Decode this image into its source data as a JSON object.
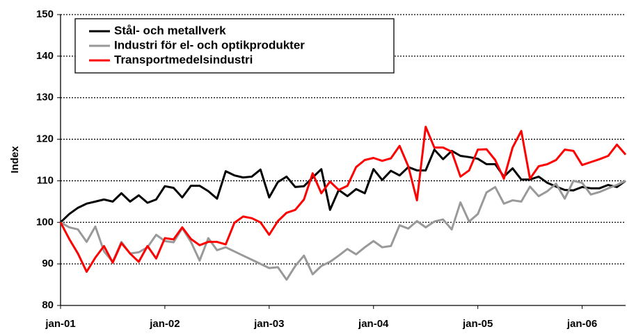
{
  "chart_data": {
    "type": "line",
    "y_label": "Index",
    "categories": [
      "jan-01",
      null,
      null,
      null,
      null,
      null,
      null,
      null,
      null,
      null,
      null,
      null,
      "jan-02",
      null,
      null,
      null,
      null,
      null,
      null,
      null,
      null,
      null,
      null,
      null,
      "jan-03",
      null,
      null,
      null,
      null,
      null,
      null,
      null,
      null,
      null,
      null,
      null,
      "jan-04",
      null,
      null,
      null,
      null,
      null,
      null,
      null,
      null,
      null,
      null,
      null,
      "jan-05",
      null,
      null,
      null,
      null,
      null,
      null,
      null,
      null,
      null,
      null,
      null,
      "jan-06",
      null,
      null,
      null,
      null,
      null
    ],
    "series": [
      {
        "name": "Stål- och metallverk",
        "color": "#000000",
        "values": [
          100,
          102,
          103.5,
          104.5,
          105,
          105.5,
          105,
          107,
          105,
          106.5,
          104.7,
          105.5,
          108.7,
          108.3,
          106,
          108.8,
          108.8,
          107.5,
          105.7,
          112.3,
          111.3,
          110.8,
          111,
          112.7,
          106,
          109.7,
          111,
          108.5,
          108.7,
          110.8,
          112.8,
          103,
          107.8,
          106.3,
          108,
          107,
          112.8,
          110.2,
          112.4,
          111.3,
          113.3,
          112.5,
          112.5,
          117.5,
          115.2,
          117.2,
          116,
          115.7,
          115.3,
          114,
          114,
          111,
          113,
          110.3,
          110.3,
          111,
          109.5,
          108.6,
          107.8,
          107.7,
          108.5,
          108.2,
          108.2,
          109,
          108.5,
          110
        ]
      },
      {
        "name": "Industri för el- och optikprodukter",
        "color": "#999999",
        "values": [
          100,
          98.8,
          98.3,
          95.3,
          99,
          93,
          90.5,
          95.3,
          92.5,
          92.8,
          94,
          97,
          95.5,
          95.2,
          98.6,
          95.3,
          90.8,
          96.2,
          93.3,
          94,
          93,
          92,
          91,
          90,
          89,
          89.2,
          86.2,
          89.5,
          92,
          87.5,
          89.5,
          90.5,
          92,
          93.6,
          92.3,
          94,
          95.5,
          94,
          94.3,
          99.3,
          98.5,
          100.3,
          98.8,
          100.2,
          100.7,
          98.3,
          104.8,
          100.2,
          102,
          107.2,
          108.5,
          104.5,
          105.3,
          105,
          108.6,
          106.3,
          107.5,
          109.3,
          105.7,
          110,
          109.5,
          106.7,
          107.3,
          108.2,
          109,
          110
        ]
      },
      {
        "name": "Transportmedelsindustri",
        "color": "#ff0000",
        "values": [
          100,
          96,
          92.5,
          88.1,
          91.5,
          94.3,
          90.3,
          95,
          92.5,
          90.5,
          94.3,
          91.3,
          96.2,
          95.9,
          98.8,
          96,
          94.5,
          95.3,
          95.3,
          94.7,
          99.9,
          101.4,
          101,
          100,
          97,
          100.3,
          102.3,
          103,
          105.5,
          111.8,
          107,
          109.8,
          107.8,
          108.8,
          113.3,
          115,
          115.5,
          114.8,
          115.4,
          118.4,
          113.5,
          105.3,
          123,
          118,
          118,
          117,
          111,
          112.5,
          117.5,
          117.6,
          115,
          110.5,
          118,
          122,
          110.5,
          113.5,
          114,
          115,
          117.5,
          117.2,
          113.8,
          114.5,
          115.2,
          116,
          118.7,
          116.3
        ]
      }
    ],
    "ylim": [
      80,
      150
    ],
    "yticks": [
      80,
      90,
      100,
      110,
      120,
      130,
      140,
      150
    ],
    "grid": true,
    "legend": "upper left"
  }
}
